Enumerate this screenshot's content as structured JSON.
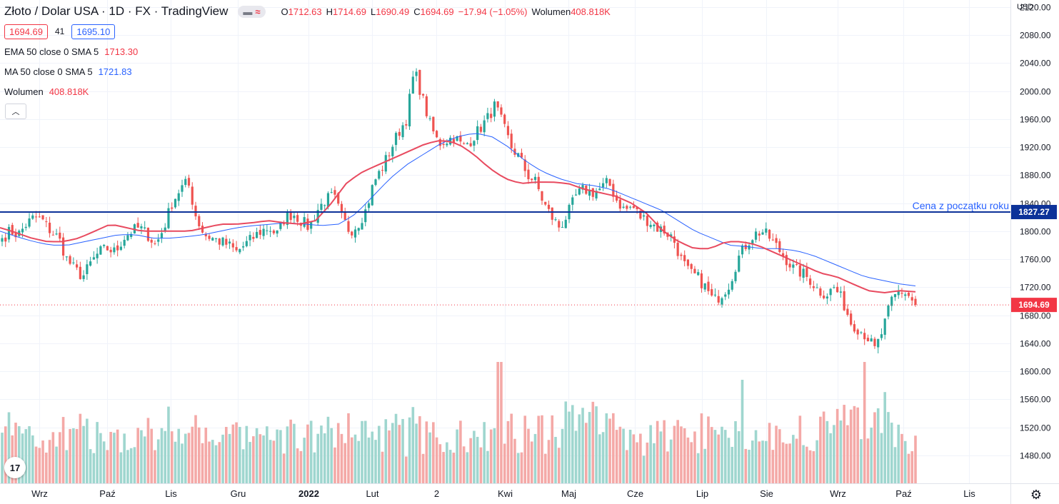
{
  "header": {
    "symbol_title": "Złoto / Dolar USA · 1D · FX · TradingView",
    "compare_icon": "compare-wave-icon",
    "ohlc": {
      "o_label": "O",
      "o": "1712.63",
      "h_label": "H",
      "h": "1714.69",
      "l_label": "L",
      "l": "1690.49",
      "c_label": "C",
      "c": "1694.69",
      "change": "−17.94 (−1.05%)",
      "volume_label": "Wolumen",
      "volume": "408.818K"
    },
    "sell_price": "1694.69",
    "spread": "41",
    "buy_price": "1695.10"
  },
  "indicators": {
    "ema": {
      "label": "EMA 50 close 0 SMA 5",
      "value": "1713.30",
      "color": "#e84a5f"
    },
    "ma": {
      "label": "MA 50 close 0 SMA 5",
      "value": "1721.83",
      "color": "#2962ff"
    },
    "volume": {
      "label": "Wolumen",
      "value": "408.818K"
    }
  },
  "collapse_icon": "chevron-up-icon",
  "logo_text": "17",
  "settings_icon": "gear-icon",
  "price_axis": {
    "currency": "USD"
  },
  "colors": {
    "up": "#26a69a",
    "down": "#ef5350",
    "vol_up": "#9fd6cf",
    "vol_down": "#f4a9a7",
    "ema": "#e84a5f",
    "ma": "#2962ff",
    "hline": "#0c3299"
  },
  "chart_data": {
    "type": "candlestick",
    "y_ticks": [
      "1480.00",
      "1520.00",
      "1560.00",
      "1600.00",
      "1640.00",
      "1680.00",
      "1720.00",
      "1760.00",
      "1800.00",
      "1840.00",
      "1880.00",
      "1920.00",
      "1960.00",
      "2000.00",
      "2040.00",
      "2080.00",
      "2120.00"
    ],
    "ylim": [
      1440,
      2130
    ],
    "x_ticks": [
      {
        "label": "Wrz",
        "bold": false
      },
      {
        "label": "Paź",
        "bold": false
      },
      {
        "label": "Lis",
        "bold": false
      },
      {
        "label": "Gru",
        "bold": false
      },
      {
        "label": "2022",
        "bold": true
      },
      {
        "label": "Lut",
        "bold": false
      },
      {
        "label": "2",
        "bold": false
      },
      {
        "label": "Kwi",
        "bold": false
      },
      {
        "label": "Maj",
        "bold": false
      },
      {
        "label": "Cze",
        "bold": false
      },
      {
        "label": "Lip",
        "bold": false
      },
      {
        "label": "Sie",
        "bold": false
      },
      {
        "label": "Wrz",
        "bold": false
      },
      {
        "label": "Paź",
        "bold": false
      },
      {
        "label": "Lis",
        "bold": false
      }
    ],
    "close_anchors": [
      1790,
      1800,
      1795,
      1810,
      1820,
      1815,
      1800,
      1790,
      1760,
      1745,
      1735,
      1755,
      1770,
      1775,
      1770,
      1790,
      1800,
      1805,
      1795,
      1780,
      1805,
      1840,
      1860,
      1870,
      1820,
      1795,
      1790,
      1785,
      1780,
      1770,
      1780,
      1790,
      1800,
      1805,
      1795,
      1820,
      1825,
      1815,
      1805,
      1830,
      1845,
      1850,
      1820,
      1800,
      1810,
      1830,
      1870,
      1890,
      1915,
      1940,
      1960,
      2030,
      1990,
      1950,
      1925,
      1930,
      1935,
      1920,
      1930,
      1945,
      1960,
      1980,
      1950,
      1920,
      1905,
      1880,
      1870,
      1840,
      1820,
      1805,
      1825,
      1850,
      1860,
      1855,
      1860,
      1870,
      1845,
      1830,
      1835,
      1820,
      1815,
      1805,
      1800,
      1790,
      1760,
      1740,
      1735,
      1720,
      1700,
      1710,
      1725,
      1760,
      1780,
      1795,
      1800,
      1790,
      1775,
      1760,
      1745,
      1740,
      1730,
      1715,
      1710,
      1720,
      1700,
      1670,
      1660,
      1650,
      1630,
      1660,
      1700,
      1715,
      1710,
      1694.69
    ],
    "ema_anchors": [
      1805,
      1798,
      1790,
      1785,
      1785,
      1790,
      1800,
      1810,
      1805,
      1800,
      1800,
      1800,
      1800,
      1805,
      1810,
      1810,
      1812,
      1815,
      1812,
      1810,
      1815,
      1840,
      1870,
      1885,
      1895,
      1905,
      1915,
      1925,
      1930,
      1925,
      1910,
      1890,
      1875,
      1868,
      1870,
      1870,
      1868,
      1860,
      1855,
      1850,
      1840,
      1825,
      1800,
      1785,
      1775,
      1775,
      1785,
      1785,
      1780,
      1770,
      1760,
      1750,
      1740,
      1735,
      1725,
      1715,
      1712,
      1715,
      1713.3
    ],
    "ma_anchors": [
      1800,
      1792,
      1785,
      1780,
      1780,
      1785,
      1790,
      1795,
      1795,
      1790,
      1790,
      1792,
      1795,
      1800,
      1805,
      1808,
      1810,
      1812,
      1810,
      1808,
      1810,
      1825,
      1850,
      1875,
      1895,
      1910,
      1925,
      1935,
      1940,
      1935,
      1920,
      1900,
      1885,
      1875,
      1868,
      1865,
      1860,
      1850,
      1840,
      1830,
      1815,
      1800,
      1790,
      1780,
      1778,
      1775,
      1775,
      1772,
      1765,
      1755,
      1745,
      1735,
      1730,
      1725,
      1721.83
    ],
    "horizontal_line": {
      "value": 1827.27,
      "label": "Cena z początku roku",
      "value_label": "1827.27"
    },
    "last_price": {
      "value": 1694.69,
      "label": "1694.69"
    }
  }
}
